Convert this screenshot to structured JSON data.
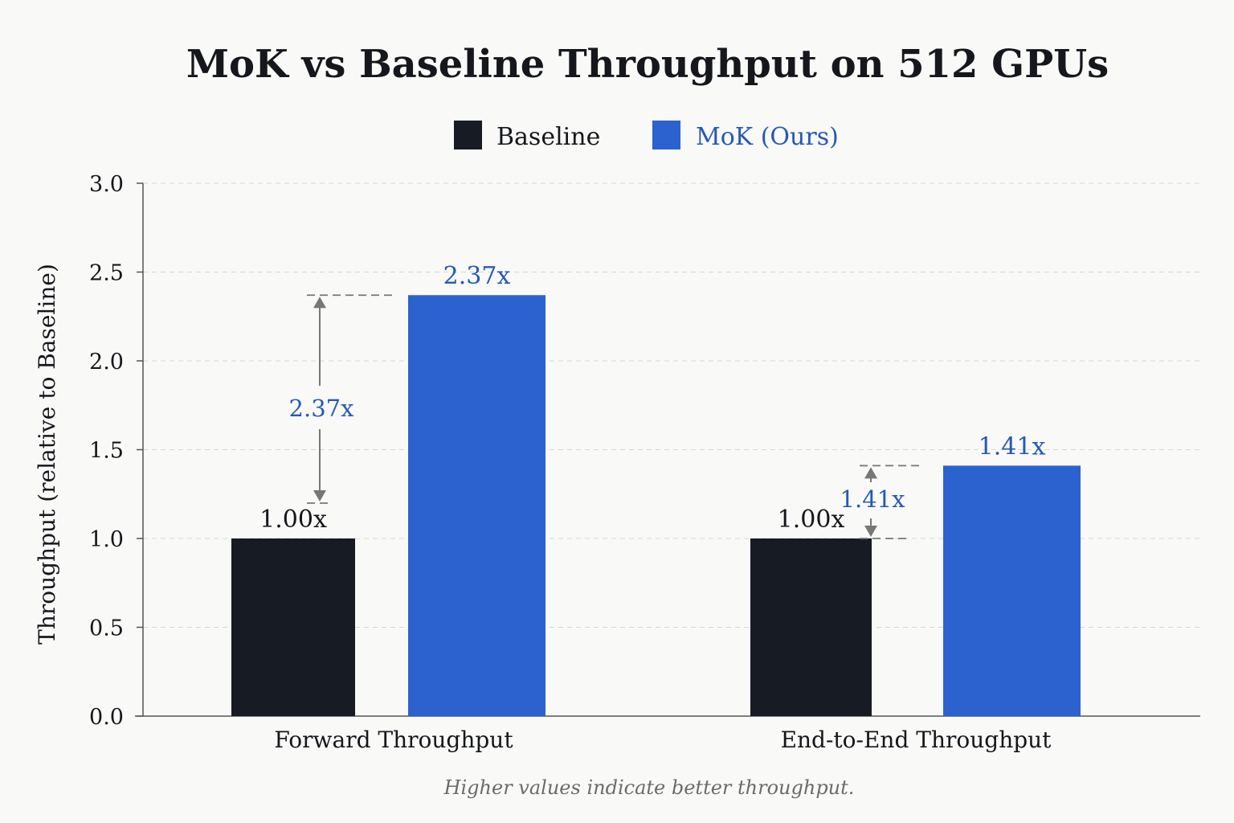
{
  "chart_data": {
    "type": "bar",
    "title": "MoK vs Baseline Throughput on 512 GPUs",
    "ylabel": "Throughput (relative to Baseline)",
    "xlabel": "",
    "ylim": [
      0,
      3.0
    ],
    "yticks": [
      "0.0",
      "0.5",
      "1.0",
      "1.5",
      "2.0",
      "2.5",
      "3.0"
    ],
    "grid": true,
    "legend_position": "top-center",
    "categories": [
      "Forward Throughput",
      "End-to-End Throughput"
    ],
    "series": [
      {
        "name": "Baseline",
        "color": "#171b24",
        "values": [
          1.0,
          1.0
        ],
        "labels": [
          "1.00x",
          "1.00x"
        ]
      },
      {
        "name": "MoK (Ours)",
        "color": "#2c62cf",
        "values": [
          2.37,
          1.41
        ],
        "labels": [
          "2.37x",
          "1.41x"
        ]
      }
    ],
    "annotations": [
      {
        "category": "Forward Throughput",
        "from": 1.0,
        "to": 2.37,
        "label": "2.37x"
      },
      {
        "category": "End-to-End Throughput",
        "from": 1.0,
        "to": 1.41,
        "label": "1.41x"
      }
    ],
    "footnote": "Higher values indicate better throughput.",
    "label_color": "#2459b8"
  }
}
